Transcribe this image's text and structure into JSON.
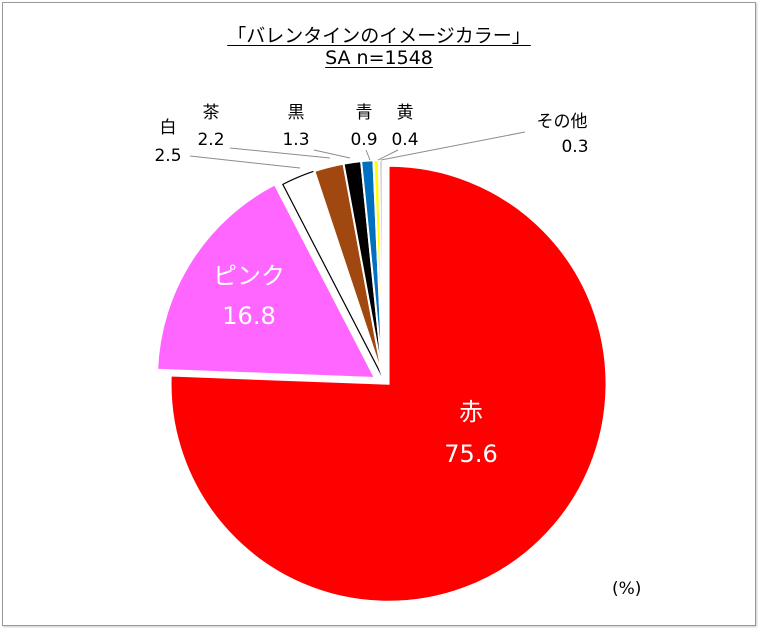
{
  "chart_data": {
    "type": "pie",
    "title": "「バレンタインのイメージカラー」",
    "subtitle": "SA  n=1548",
    "unit": "(%)",
    "start_angle_deg": 0,
    "direction": "clockwise",
    "slices": [
      {
        "label": "赤",
        "value": 75.6,
        "value_text": "75.6",
        "color": "#ff0000",
        "label_position": "inside",
        "label_color": "#ffffff"
      },
      {
        "label": "ピンク",
        "value": 16.8,
        "value_text": "16.8",
        "color": "#ff66ff",
        "label_position": "inside",
        "label_color": "#ffffff"
      },
      {
        "label": "白",
        "value": 2.5,
        "value_text": "2.5",
        "color": "#ffffff",
        "label_position": "outside",
        "label_color": "#000000"
      },
      {
        "label": "茶",
        "value": 2.2,
        "value_text": "2.2",
        "color": "#a0480f",
        "label_position": "outside",
        "label_color": "#000000"
      },
      {
        "label": "黒",
        "value": 1.3,
        "value_text": "1.3",
        "color": "#000000",
        "label_position": "outside",
        "label_color": "#000000"
      },
      {
        "label": "青",
        "value": 0.9,
        "value_text": "0.9",
        "color": "#0070c0",
        "label_position": "outside",
        "label_color": "#000000"
      },
      {
        "label": "黄",
        "value": 0.4,
        "value_text": "0.4",
        "color": "#ffff00",
        "label_position": "outside",
        "label_color": "#000000"
      },
      {
        "label": "その他",
        "value": 0.3,
        "value_text": "0.3",
        "color": "#d9d9d9",
        "label_position": "outside",
        "label_color": "#000000"
      }
    ]
  }
}
